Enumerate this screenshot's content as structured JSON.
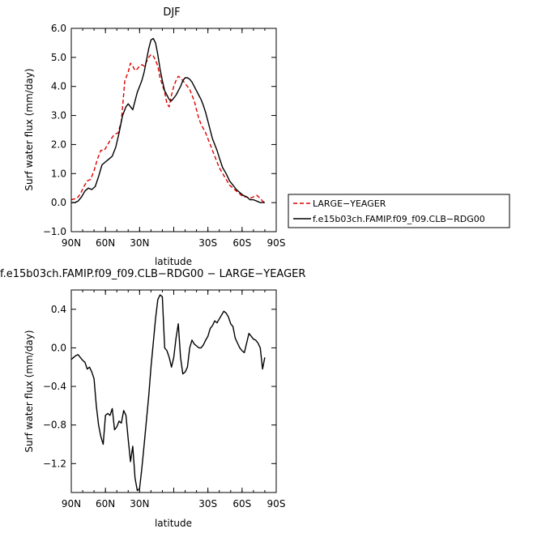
{
  "chart_data": [
    {
      "type": "line",
      "title": "DJF",
      "xlabel": "latitude",
      "ylabel": "Surf water flux (mm/day)",
      "xlim": [
        90,
        -90
      ],
      "ylim": [
        -1.0,
        6.0
      ],
      "x_ticks": [
        90,
        60,
        30,
        0,
        -30,
        -60,
        -90
      ],
      "x_tick_labels": [
        "90N",
        "60N",
        "30N",
        "",
        "30S",
        "60S",
        "90S"
      ],
      "y_ticks": [
        -1.0,
        0.0,
        1.0,
        2.0,
        3.0,
        4.0,
        5.0,
        6.0
      ],
      "y_tick_labels": [
        "−1.0",
        "0.0",
        "1.0",
        "2.0",
        "3.0",
        "4.0",
        "5.0",
        "6.0"
      ],
      "legend_position": "right, outside plot",
      "series": [
        {
          "name": "LARGE−YEAGER",
          "color": "#dd0000",
          "dash": "dashed",
          "x": [
            90,
            88,
            85,
            82,
            79,
            76,
            73,
            70,
            67,
            64,
            61,
            58,
            55,
            52,
            49,
            46,
            43,
            40,
            38,
            36,
            34,
            32,
            30,
            28,
            26,
            24,
            22,
            20,
            18,
            16,
            14,
            12,
            10,
            8,
            6,
            4,
            2,
            0,
            -2,
            -4,
            -6,
            -8,
            -10,
            -12,
            -14,
            -16,
            -18,
            -20,
            -22,
            -24,
            -26,
            -28,
            -30,
            -32,
            -34,
            -36,
            -38,
            -40,
            -43,
            -46,
            -49,
            -52,
            -55,
            -58,
            -61,
            -64,
            -67,
            -70,
            -73,
            -76,
            -78,
            -80
          ],
          "values": [
            0.1,
            0.12,
            0.15,
            0.3,
            0.55,
            0.75,
            0.8,
            1.1,
            1.5,
            1.8,
            1.8,
            2.0,
            2.2,
            2.35,
            2.4,
            2.8,
            4.2,
            4.5,
            4.8,
            4.7,
            4.55,
            4.6,
            4.7,
            4.75,
            4.7,
            4.85,
            5.0,
            5.1,
            5.05,
            4.9,
            4.7,
            4.3,
            4.05,
            3.8,
            3.4,
            3.3,
            3.7,
            4.0,
            4.2,
            4.35,
            4.3,
            4.2,
            4.1,
            4.0,
            3.9,
            3.7,
            3.5,
            3.2,
            2.9,
            2.7,
            2.55,
            2.4,
            2.2,
            2.0,
            1.8,
            1.6,
            1.4,
            1.2,
            1.0,
            0.8,
            0.6,
            0.5,
            0.4,
            0.3,
            0.2,
            0.2,
            0.15,
            0.2,
            0.25,
            0.15,
            0.05,
            0.0
          ]
        },
        {
          "name": "f.e15b03ch.FAMIP.f09_f09.CLB−RDG00",
          "color": "#000000",
          "dash": "solid",
          "x": [
            90,
            87,
            84,
            81,
            78,
            75,
            72,
            69,
            66,
            63,
            60,
            57,
            54,
            51,
            48,
            45,
            42,
            40,
            38,
            36,
            34,
            32,
            30,
            28,
            26,
            24,
            22,
            20,
            18,
            16,
            14,
            12,
            10,
            8,
            6,
            4,
            2,
            0,
            -2,
            -4,
            -6,
            -8,
            -10,
            -12,
            -14,
            -16,
            -18,
            -20,
            -22,
            -24,
            -26,
            -28,
            -30,
            -32,
            -34,
            -36,
            -38,
            -40,
            -43,
            -46,
            -49,
            -52,
            -55,
            -58,
            -61,
            -64,
            -67,
            -70,
            -73,
            -76,
            -78,
            -80
          ],
          "values": [
            0.0,
            0.0,
            0.05,
            0.2,
            0.4,
            0.5,
            0.45,
            0.55,
            0.9,
            1.3,
            1.4,
            1.5,
            1.6,
            1.9,
            2.4,
            3.0,
            3.3,
            3.4,
            3.3,
            3.2,
            3.5,
            3.8,
            4.0,
            4.2,
            4.5,
            4.9,
            5.3,
            5.6,
            5.65,
            5.5,
            5.1,
            4.6,
            4.2,
            3.85,
            3.7,
            3.55,
            3.5,
            3.6,
            3.7,
            3.85,
            4.0,
            4.2,
            4.3,
            4.3,
            4.25,
            4.15,
            4.0,
            3.85,
            3.7,
            3.55,
            3.35,
            3.1,
            2.8,
            2.5,
            2.2,
            2.0,
            1.8,
            1.55,
            1.2,
            1.0,
            0.75,
            0.6,
            0.45,
            0.35,
            0.25,
            0.2,
            0.1,
            0.1,
            0.05,
            0.0,
            0.0,
            0.0
          ]
        }
      ]
    },
    {
      "type": "line",
      "title": "f.e15b03ch.FAMIP.f09_f09.CLB−RDG00 − LARGE−YEAGER",
      "xlabel": "latitude",
      "ylabel": "Surf water flux (mm/day)",
      "xlim": [
        90,
        -90
      ],
      "ylim": [
        -1.5,
        0.6
      ],
      "x_ticks": [
        90,
        60,
        30,
        0,
        -30,
        -60,
        -90
      ],
      "x_tick_labels": [
        "90N",
        "60N",
        "30N",
        "",
        "30S",
        "60S",
        "90S"
      ],
      "y_ticks": [
        -1.2,
        -0.8,
        -0.4,
        0.0,
        0.4
      ],
      "y_tick_labels": [
        "−1.2",
        "−0.8",
        "−0.4",
        "0.0",
        "0.4"
      ],
      "series": [
        {
          "color": "#000000",
          "dash": "solid",
          "x": [
            90,
            88,
            86,
            84,
            82,
            80,
            78,
            76,
            74,
            72,
            70,
            68,
            66,
            64,
            62,
            60,
            58,
            56,
            54,
            52,
            50,
            48,
            46,
            44,
            42,
            40,
            38,
            36,
            34,
            32,
            30,
            28,
            26,
            24,
            22,
            20,
            18,
            16,
            14,
            12,
            10,
            8,
            6,
            4,
            2,
            0,
            -2,
            -4,
            -6,
            -8,
            -10,
            -12,
            -14,
            -16,
            -18,
            -20,
            -22,
            -24,
            -26,
            -28,
            -30,
            -32,
            -34,
            -36,
            -38,
            -40,
            -42,
            -44,
            -46,
            -48,
            -50,
            -52,
            -54,
            -56,
            -58,
            -60,
            -62,
            -64,
            -66,
            -68,
            -70,
            -72,
            -74,
            -76,
            -78,
            -80
          ],
          "values": [
            -0.12,
            -0.1,
            -0.08,
            -0.07,
            -0.1,
            -0.13,
            -0.15,
            -0.22,
            -0.2,
            -0.25,
            -0.32,
            -0.6,
            -0.8,
            -0.92,
            -1.0,
            -0.7,
            -0.68,
            -0.7,
            -0.63,
            -0.85,
            -0.82,
            -0.76,
            -0.78,
            -0.65,
            -0.7,
            -0.95,
            -1.18,
            -1.02,
            -1.35,
            -1.48,
            -1.46,
            -1.25,
            -1.0,
            -0.75,
            -0.5,
            -0.2,
            0.05,
            0.3,
            0.5,
            0.55,
            0.53,
            0.0,
            -0.03,
            -0.1,
            -0.2,
            -0.1,
            0.1,
            0.25,
            -0.1,
            -0.27,
            -0.25,
            -0.2,
            0.0,
            0.08,
            0.04,
            0.02,
            0.0,
            0.0,
            0.03,
            0.08,
            0.12,
            0.2,
            0.23,
            0.28,
            0.26,
            0.3,
            0.34,
            0.38,
            0.36,
            0.32,
            0.25,
            0.22,
            0.1,
            0.05,
            0.0,
            -0.03,
            -0.05,
            0.05,
            0.15,
            0.12,
            0.09,
            0.08,
            0.05,
            0.0,
            -0.22,
            -0.1
          ]
        }
      ]
    }
  ]
}
